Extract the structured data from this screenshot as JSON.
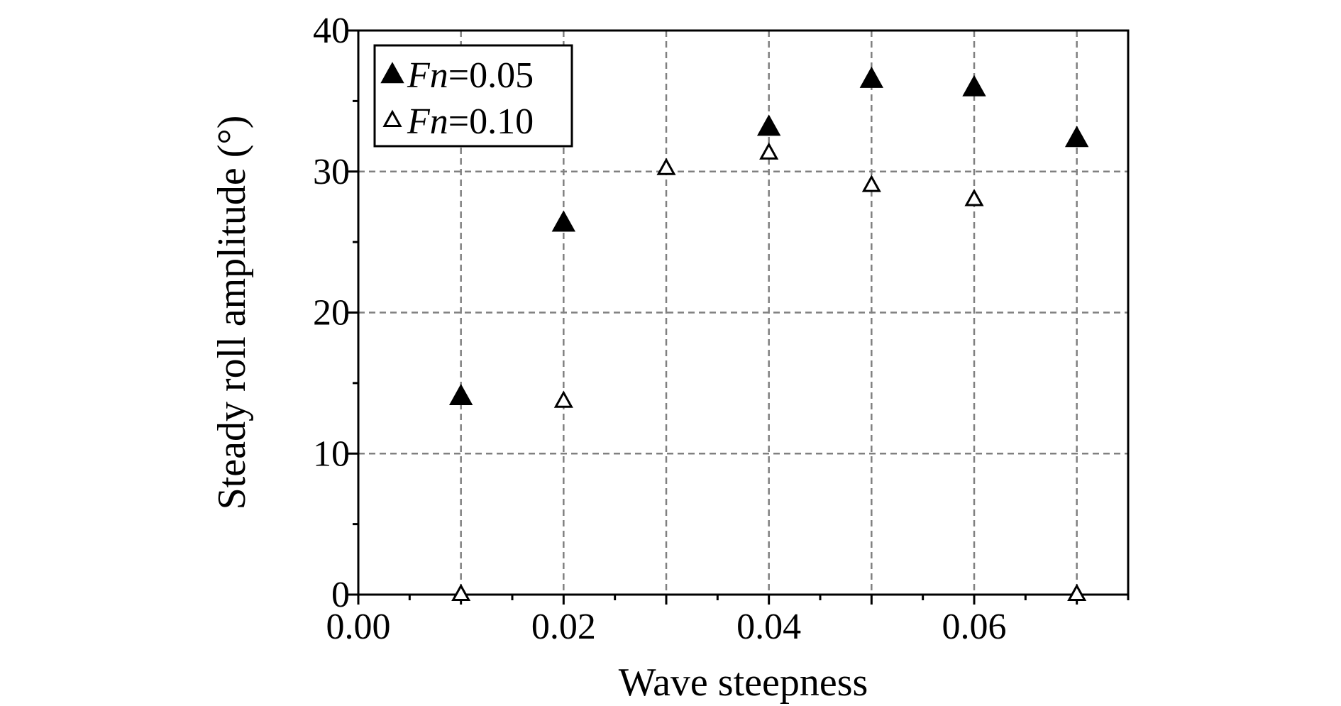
{
  "chart_data": {
    "type": "scatter",
    "title": "",
    "xlabel": "Wave steepness",
    "ylabel": "Steady roll amplitude (°)",
    "xlim": [
      0.0,
      0.075
    ],
    "ylim": [
      0,
      40
    ],
    "x_ticks": [
      "0.00",
      "0.02",
      "0.04",
      "0.06"
    ],
    "x_tick_values": [
      0.0,
      0.02,
      0.04,
      0.06
    ],
    "y_ticks": [
      "0",
      "10",
      "20",
      "30",
      "40"
    ],
    "y_tick_values": [
      0,
      10,
      20,
      30,
      40
    ],
    "x_grid": [
      0.01,
      0.02,
      0.03,
      0.04,
      0.05,
      0.06,
      0.07
    ],
    "y_grid": [
      10,
      20,
      30
    ],
    "grid": true,
    "legend_position": "top-left",
    "series": [
      {
        "name_italic": "Fn",
        "name_rest": "=0.05",
        "marker": "filled-triangle",
        "color": "#000000",
        "x": [
          0.01,
          0.02,
          0.04,
          0.05,
          0.06,
          0.07
        ],
        "y": [
          14.0,
          26.3,
          33.1,
          36.5,
          35.9,
          32.3
        ]
      },
      {
        "name_italic": "Fn",
        "name_rest": "=0.10",
        "marker": "open-triangle",
        "color": "#000000",
        "x": [
          0.01,
          0.02,
          0.03,
          0.04,
          0.05,
          0.06,
          0.07
        ],
        "y": [
          0.0,
          13.7,
          30.2,
          31.3,
          29.0,
          28.0,
          0.0
        ]
      }
    ]
  }
}
